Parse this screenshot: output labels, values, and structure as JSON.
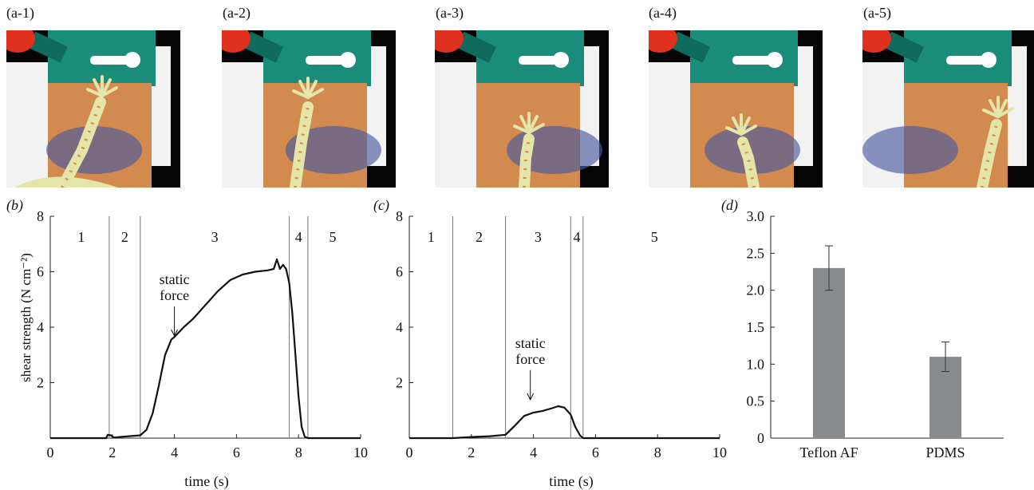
{
  "photos": {
    "labels": [
      "(a-1)",
      "(a-2)",
      "(a-3)",
      "(a-4)",
      "(a-5)"
    ],
    "colors": {
      "background": "#050505",
      "mount": "#1a8c7a",
      "mount_dark": "#0f6b5c",
      "white_block": "#f2f2f2",
      "red_part": "#e0301e",
      "plate": "#d28a4e",
      "plate_shadow": "#4a5a9e",
      "gecko": "#e3e6a8",
      "gecko_spots": "#d98a3a"
    }
  },
  "chart_data": [
    {
      "panel": "(b)",
      "type": "line",
      "ylabel": "shear strength (N cm⁻²)",
      "xlabel": "time (s)",
      "xlim": [
        0,
        10
      ],
      "ylim": [
        0,
        8
      ],
      "xticks": [
        0,
        2,
        4,
        6,
        8,
        10
      ],
      "yticks": [
        2,
        4,
        6,
        8
      ],
      "phase_boundaries": [
        1.9,
        2.9,
        7.7,
        8.3
      ],
      "phase_labels": [
        {
          "text": "1",
          "x": 1.0
        },
        {
          "text": "2",
          "x": 2.4
        },
        {
          "text": "3",
          "x": 5.3
        },
        {
          "text": "4",
          "x": 8.0
        },
        {
          "text": "5",
          "x": 9.1
        }
      ],
      "annotation": {
        "lines": [
          "static",
          "force"
        ],
        "x": 4.0,
        "y": 3.6
      },
      "series": [
        {
          "x": [
            0.0,
            1.8,
            1.85,
            1.95,
            2.05,
            2.3,
            2.9,
            3.1,
            3.3,
            3.5,
            3.7,
            3.9,
            4.0,
            4.3,
            4.6,
            5.0,
            5.4,
            5.8,
            6.2,
            6.6,
            7.0,
            7.2,
            7.3,
            7.4,
            7.5,
            7.6,
            7.7,
            7.8,
            7.9,
            8.0,
            8.1,
            8.2,
            8.3,
            10.0
          ],
          "y": [
            0.0,
            0.0,
            0.12,
            0.1,
            0.02,
            0.05,
            0.1,
            0.3,
            0.9,
            1.9,
            3.0,
            3.55,
            3.65,
            4.0,
            4.3,
            4.8,
            5.3,
            5.7,
            5.9,
            6.0,
            6.05,
            6.1,
            6.45,
            6.1,
            6.25,
            6.1,
            5.6,
            4.5,
            3.0,
            1.5,
            0.4,
            0.05,
            0.0,
            0.0
          ]
        }
      ]
    },
    {
      "panel": "(c)",
      "type": "line",
      "xlabel": "time (s)",
      "xlim": [
        0,
        10
      ],
      "ylim": [
        0,
        8
      ],
      "xticks": [
        0,
        2,
        4,
        6,
        8,
        10
      ],
      "yticks": [
        2,
        4,
        6,
        8
      ],
      "phase_boundaries": [
        1.4,
        3.1,
        5.2,
        5.6
      ],
      "phase_labels": [
        {
          "text": "1",
          "x": 0.7
        },
        {
          "text": "2",
          "x": 2.25
        },
        {
          "text": "3",
          "x": 4.15
        },
        {
          "text": "4",
          "x": 5.4
        },
        {
          "text": "5",
          "x": 7.9
        }
      ],
      "annotation": {
        "lines": [
          "static",
          "force"
        ],
        "x": 3.9,
        "y": 1.3
      },
      "series": [
        {
          "x": [
            0.0,
            1.4,
            2.0,
            2.6,
            3.1,
            3.4,
            3.7,
            4.0,
            4.3,
            4.6,
            4.8,
            5.0,
            5.2,
            5.35,
            5.5,
            5.6,
            10.0
          ],
          "y": [
            0.0,
            0.0,
            0.04,
            0.07,
            0.12,
            0.45,
            0.8,
            0.92,
            0.98,
            1.08,
            1.15,
            1.1,
            0.85,
            0.4,
            0.1,
            0.0,
            0.0
          ]
        }
      ]
    },
    {
      "panel": "(d)",
      "type": "bar",
      "categories": [
        "Teflon AF",
        "PDMS"
      ],
      "values": [
        2.3,
        1.1
      ],
      "errors": [
        0.3,
        0.2
      ],
      "ylim": [
        0,
        3
      ],
      "yticks": [
        0,
        0.5,
        1.0,
        1.5,
        2.0,
        2.5,
        3.0
      ],
      "ytick_labels": [
        "0",
        "0.5",
        "1.0",
        "1.5",
        "2.0",
        "2.5",
        "3.0"
      ],
      "bar_color": "#8a8b8f"
    }
  ]
}
